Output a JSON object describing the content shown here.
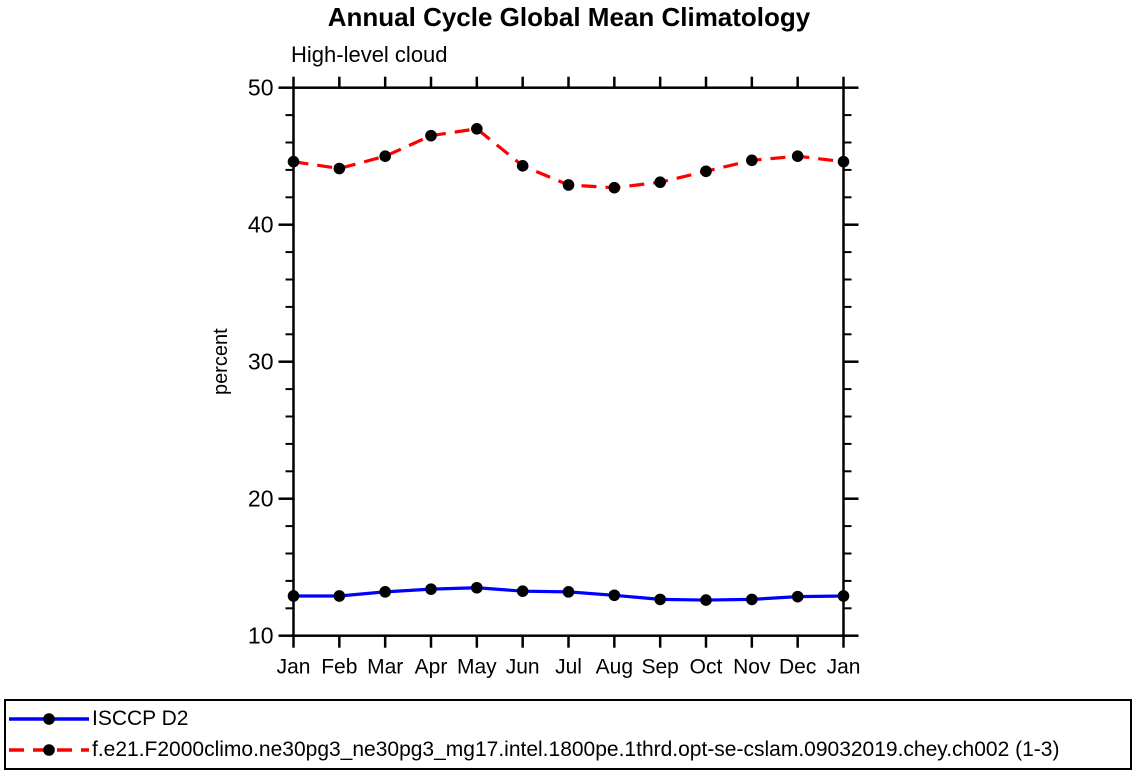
{
  "chart_data": {
    "type": "line",
    "title": "Annual Cycle Global Mean Climatology",
    "subtitle": "High-level cloud",
    "ylabel": "percent",
    "ylim": [
      10,
      50
    ],
    "y_major_ticks": [
      10,
      20,
      30,
      40,
      50
    ],
    "y_minor_step": 2,
    "grid": false,
    "legend_position": "bottom-box",
    "categories": [
      "Jan",
      "Feb",
      "Mar",
      "Apr",
      "May",
      "Jun",
      "Jul",
      "Aug",
      "Sep",
      "Oct",
      "Nov",
      "Dec",
      "Jan"
    ],
    "series": [
      {
        "name": "ISCCP D2",
        "color": "#0000ff",
        "line_style": "solid",
        "marker": "filled-circle",
        "marker_color": "#000000",
        "values": [
          12.9,
          12.9,
          13.2,
          13.4,
          13.5,
          13.25,
          13.2,
          12.95,
          12.65,
          12.6,
          12.65,
          12.85,
          12.9
        ]
      },
      {
        "name": "f.e21.F2000climo.ne30pg3_ne30pg3_mg17.intel.1800pe.1thrd.opt-se-cslam.09032019.chey.ch002 (1-3)",
        "color": "#ff0000",
        "line_style": "dashed",
        "marker": "filled-circle",
        "marker_color": "#000000",
        "values": [
          44.6,
          44.1,
          45.0,
          46.5,
          47.0,
          44.3,
          42.9,
          42.7,
          43.1,
          43.9,
          44.7,
          45.0,
          44.6
        ]
      }
    ],
    "axis_color": "#000000"
  }
}
